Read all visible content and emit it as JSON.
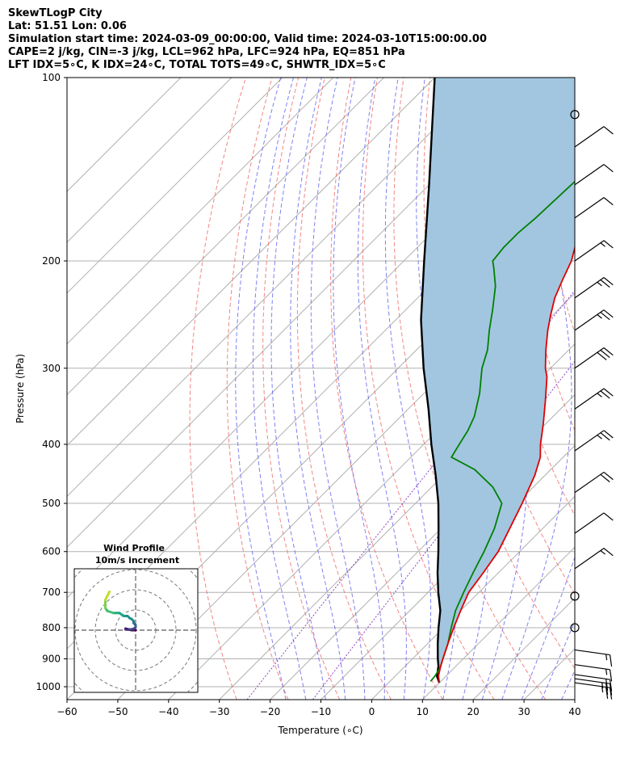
{
  "header": {
    "line1": "SkewTLogP City",
    "line2": "Lat: 51.51   Lon: 0.06",
    "line3": "Simulation start time: 2024-03-09_00:00:00, Valid time: 2024-03-10T15:00:00.00",
    "line4": "CAPE=2 j/kg, CIN=-3 j/kg, LCL=962 hPa, LFC=924 hPa, EQ=851 hPa",
    "line5": "LFT IDX=5∘C, K IDX=24∘C, TOTAL TOTS=49∘C, SHWTR_IDX=5∘C"
  },
  "chart_data": {
    "type": "line",
    "skew": true,
    "xlabel": "Temperature (∘C)",
    "ylabel": "Pressure (hPa)",
    "xlim": [
      -60,
      40
    ],
    "ylim": [
      1050,
      100
    ],
    "yscale": "log",
    "x_ticks": [
      -60,
      -50,
      -40,
      -30,
      -20,
      -10,
      0,
      10,
      20,
      30,
      40
    ],
    "x_tick_labels": [
      "−60",
      "−50",
      "−40",
      "−30",
      "−20",
      "−10",
      "0",
      "10",
      "20",
      "30",
      "40"
    ],
    "y_ticks": [
      1000,
      900,
      800,
      700,
      600,
      500,
      400,
      300,
      200,
      100
    ],
    "y_tick_labels": [
      "1000",
      "900",
      "800",
      "700",
      "600",
      "500",
      "400",
      "300",
      "200",
      "100"
    ],
    "grid": true,
    "colors": {
      "temperature": "#e00000",
      "dewpoint": "#008000",
      "parcel": "#000000",
      "cape_fill": "#a2c6e0",
      "dry_adiabat": "#f07070",
      "moist_adiabat": "#6a6af0",
      "mixing_ratio": "#9040c0",
      "isotherm": "#b0b0b0"
    },
    "series": [
      {
        "id": "temperature",
        "pressure": [
          985,
          960,
          930,
          900,
          850,
          800,
          750,
          700,
          650,
          600,
          550,
          500,
          450,
          420,
          400,
          370,
          340,
          310,
          300,
          280,
          260,
          245,
          230,
          215,
          200,
          185,
          170,
          155,
          140,
          125,
          110,
          100
        ],
        "values": [
          10,
          8.5,
          7.2,
          6.0,
          4.0,
          2.0,
          0.0,
          -2.0,
          -3.0,
          -4.2,
          -6.5,
          -9.0,
          -12.0,
          -14.5,
          -17.0,
          -20.5,
          -24.5,
          -29.0,
          -31.0,
          -34.5,
          -38.0,
          -40.5,
          -43.0,
          -45.0,
          -47.0,
          -50.0,
          -53.0,
          -55.5,
          -58.0,
          -60.0,
          -62.0,
          -63.0
        ]
      },
      {
        "id": "dewpoint",
        "pressure": [
          980,
          960,
          930,
          900,
          850,
          800,
          750,
          700,
          650,
          600,
          550,
          500,
          470,
          440,
          420,
          400,
          380,
          360,
          330,
          300,
          280,
          260,
          240,
          220,
          205,
          200,
          190,
          180,
          170,
          150,
          130,
          115,
          100
        ],
        "values": [
          8.0,
          7.8,
          7.2,
          6.0,
          4.0,
          1.5,
          -1.0,
          -3.0,
          -5.0,
          -7.0,
          -9.5,
          -13.0,
          -18.0,
          -25.0,
          -32.0,
          -33.0,
          -34.0,
          -35.5,
          -39.0,
          -43.5,
          -46.0,
          -49.5,
          -53.0,
          -57.0,
          -61.0,
          -62.5,
          -63.0,
          -63.0,
          -62.5,
          -62.0,
          -61.5,
          -61.0,
          -60.0
        ]
      },
      {
        "id": "parcel",
        "pressure": [
          985,
          962,
          924,
          900,
          850,
          800,
          750,
          700,
          650,
          600,
          550,
          500,
          450,
          400,
          350,
          300,
          250,
          200,
          150,
          100
        ],
        "values": [
          10,
          8.3,
          6.5,
          5.0,
          2.0,
          -1.0,
          -4.0,
          -8.0,
          -12.0,
          -16.0,
          -20.5,
          -25.5,
          -31.5,
          -38.5,
          -46.0,
          -55.0,
          -65.0,
          -76.0,
          -90.0,
          -110.0
        ]
      }
    ],
    "wind_barbs": {
      "pressure": [
        985,
        970,
        955,
        920,
        870,
        800,
        710,
        640,
        560,
        480,
        410,
        350,
        300,
        260,
        230,
        200,
        170,
        150,
        130,
        115
      ],
      "speed_kt": [
        25,
        25,
        20,
        15,
        15,
        0,
        0,
        15,
        10,
        20,
        25,
        25,
        30,
        25,
        25,
        15,
        10,
        10,
        10,
        0
      ]
    },
    "hodograph": {
      "title_line1": "Wind Profile",
      "title_line2": "10m/s increment",
      "u": [
        0,
        -2,
        -4,
        -5,
        -5,
        -3,
        -1,
        0,
        0,
        -1,
        -1,
        -2,
        -3,
        -4,
        -6,
        -8,
        -11,
        -14,
        -15,
        -15,
        -15,
        -14,
        -13
      ],
      "v": [
        0,
        0,
        0.5,
        0.8,
        0.4,
        0.3,
        0.6,
        1.5,
        2.5,
        3.5,
        4.5,
        5.5,
        6.0,
        7.0,
        7.0,
        8.5,
        8.5,
        9.5,
        11.0,
        13.0,
        15.0,
        17.0,
        19.0
      ]
    }
  }
}
